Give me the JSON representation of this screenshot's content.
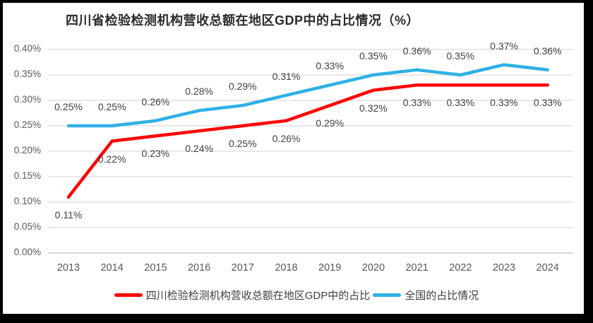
{
  "chart_data": {
    "type": "line",
    "title": "四川省检验检测机构营收总额在地区GDP中的占比情况（%）",
    "x": [
      "2013",
      "2014",
      "2015",
      "2016",
      "2017",
      "2018",
      "2019",
      "2020",
      "2021",
      "2022",
      "2023",
      "2024"
    ],
    "series": [
      {
        "id": "sichuan",
        "name": "四川检验检测机构营收总额在地区GDP中的占比",
        "color": "#fe0000",
        "values": [
          0.11,
          0.22,
          0.23,
          0.24,
          0.25,
          0.26,
          0.29,
          0.32,
          0.33,
          0.33,
          0.33,
          0.33
        ],
        "labels": [
          "0.11%",
          "0.22%",
          "0.23%",
          "0.24%",
          "0.25%",
          "0.26%",
          "0.29%",
          "0.32%",
          "0.33%",
          "0.33%",
          "0.33%",
          "0.33%"
        ],
        "label_position": "below"
      },
      {
        "id": "national",
        "name": "全国的占比情况",
        "color": "#2eb0e6",
        "values": [
          0.25,
          0.25,
          0.26,
          0.28,
          0.29,
          0.31,
          0.33,
          0.35,
          0.36,
          0.35,
          0.37,
          0.36
        ],
        "labels": [
          "0.25%",
          "0.25%",
          "0.26%",
          "0.28%",
          "0.29%",
          "0.31%",
          "0.33%",
          "0.35%",
          "0.36%",
          "0.35%",
          "0.37%",
          "0.36%"
        ],
        "label_position": "above"
      }
    ],
    "y_axis": {
      "min": 0.0,
      "max": 0.4,
      "step": 0.05,
      "unit": "%",
      "tick_labels": [
        "0.40%",
        "0.35%",
        "0.30%",
        "0.25%",
        "0.20%",
        "0.15%",
        "0.10%",
        "0.05%",
        "0.00%"
      ]
    },
    "grid": true,
    "legend_position": "bottom",
    "colors": {
      "gridline": "#d9d9d9",
      "baseline": "#bfbfbf",
      "axis_text": "#595959",
      "data_label_text": "#404040"
    }
  }
}
